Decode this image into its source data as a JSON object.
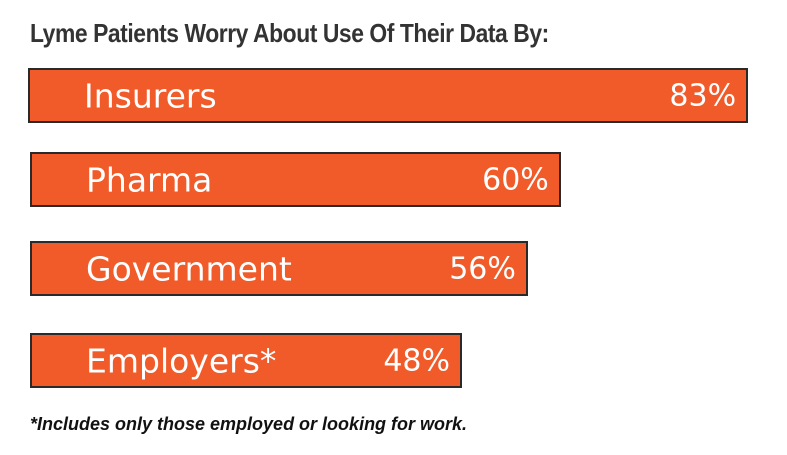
{
  "chart_data": {
    "type": "bar",
    "orientation": "horizontal",
    "title": "Lyme Patients Worry About Use Of Their Data By:",
    "categories": [
      "Insurers",
      "Pharma",
      "Government",
      "Employers*"
    ],
    "values": [
      83,
      60,
      56,
      48
    ],
    "value_labels": [
      "83%",
      "60%",
      "56%",
      "48%"
    ],
    "unit": "%",
    "bar_color": "#f15a29",
    "footnote": "*Includes only those employed or looking for work."
  }
}
